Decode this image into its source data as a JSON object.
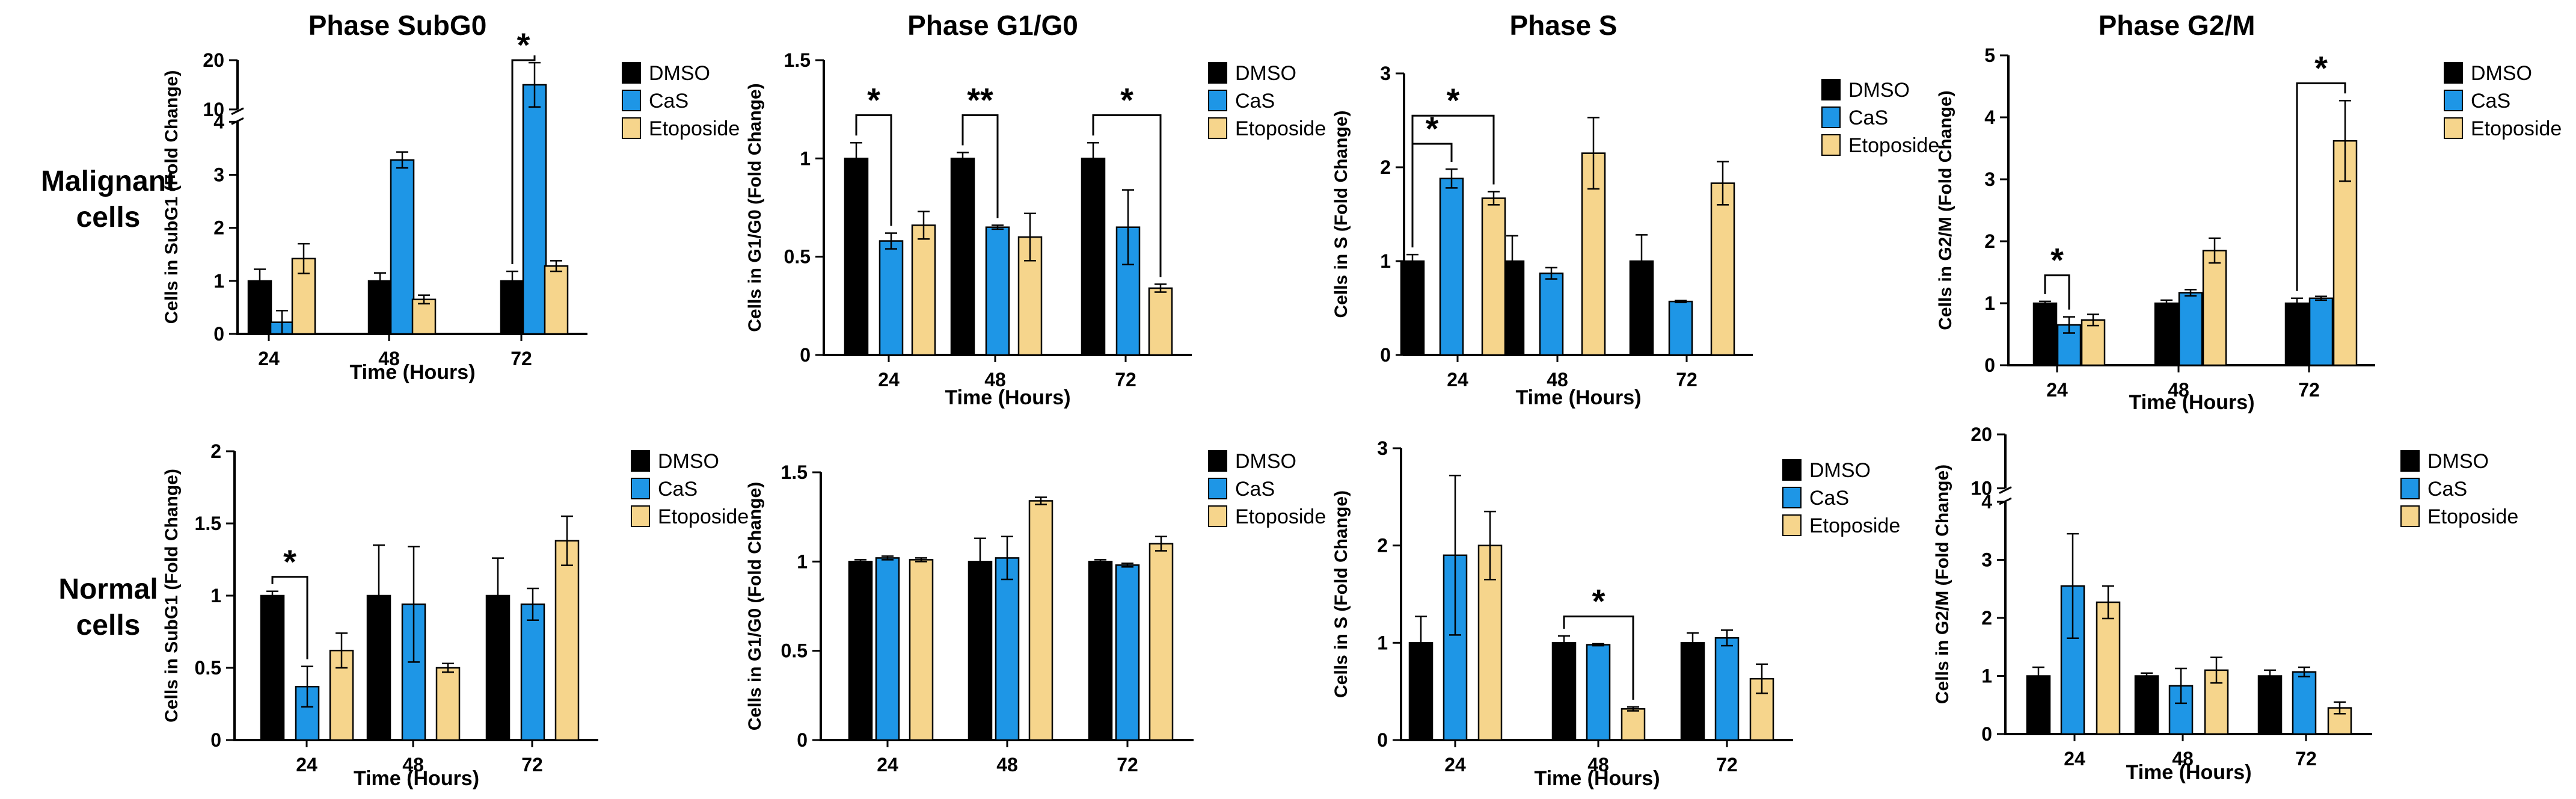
{
  "row_labels": {
    "malignant": "Malignant\ncells",
    "normal": "Normal\ncells"
  },
  "colors": {
    "DMSO": "#000000",
    "CaS": "#1e96e6",
    "Etoposide": "#f6d58c"
  },
  "chart_data": [
    {
      "id": "m_subg0",
      "type": "bar",
      "title": "Phase SubG0",
      "xlabel": "Time (Hours)",
      "ylabel": "Cells in SubG1 (Fold Change)",
      "categories": [
        "24",
        "48",
        "72"
      ],
      "series": [
        {
          "name": "DMSO",
          "values": [
            1.0,
            1.0,
            1.0
          ],
          "err": [
            0.22,
            0.15,
            0.18
          ]
        },
        {
          "name": "CaS",
          "values": [
            0.22,
            3.28,
            15.0
          ],
          "err": [
            0.22,
            0.15,
            4.5
          ]
        },
        {
          "name": "Etoposide",
          "values": [
            1.42,
            0.65,
            1.28
          ],
          "err": [
            0.28,
            0.08,
            0.1
          ]
        }
      ],
      "ylim": [
        0,
        20
      ],
      "yticks": [
        0,
        1,
        2,
        3,
        4,
        10,
        20
      ],
      "axis_break": {
        "lower": [
          0,
          4
        ],
        "upper": [
          10,
          20
        ]
      },
      "legend": [
        "DMSO",
        "CaS",
        "Etoposide"
      ],
      "annotations": [
        {
          "text": "*",
          "from_group": 2,
          "from_series": 0,
          "to_group": 2,
          "to_series": 1,
          "level": 20
        }
      ]
    },
    {
      "id": "m_g1g0",
      "type": "bar",
      "title": "Phase G1/G0",
      "xlabel": "Time (Hours)",
      "ylabel": "Cells in G1/G0 (Fold Change)",
      "categories": [
        "24",
        "48",
        "72"
      ],
      "series": [
        {
          "name": "DMSO",
          "values": [
            1.0,
            1.0,
            1.0
          ],
          "err": [
            0.08,
            0.03,
            0.08
          ]
        },
        {
          "name": "CaS",
          "values": [
            0.58,
            0.65,
            0.65
          ],
          "err": [
            0.04,
            0.01,
            0.19
          ]
        },
        {
          "name": "Etoposide",
          "values": [
            0.66,
            0.6,
            0.34
          ],
          "err": [
            0.07,
            0.12,
            0.02
          ]
        }
      ],
      "ylim": [
        0,
        1.5
      ],
      "yticks": [
        0,
        0.5,
        1.0,
        1.5
      ],
      "legend": [
        "DMSO",
        "CaS",
        "Etoposide"
      ],
      "annotations": [
        {
          "text": "*",
          "from_group": 0,
          "from_series": 0,
          "to_group": 0,
          "to_series": 1,
          "level": 1.22
        },
        {
          "text": "**",
          "from_group": 1,
          "from_series": 0,
          "to_group": 1,
          "to_series": 1,
          "level": 1.22
        },
        {
          "text": "*",
          "from_group": 2,
          "from_series": 0,
          "to_group": 2,
          "to_series": 2,
          "level": 1.22
        }
      ]
    },
    {
      "id": "m_s",
      "type": "bar",
      "title": "Phase S",
      "xlabel": "Time (Hours)",
      "ylabel": "Cells in S (Fold Change)",
      "categories": [
        "24",
        "48",
        "72"
      ],
      "series": [
        {
          "name": "DMSO",
          "values": [
            1.0,
            1.0,
            1.0
          ],
          "err": [
            0.07,
            0.27,
            0.28
          ]
        },
        {
          "name": "CaS",
          "values": [
            1.88,
            0.87,
            0.57
          ],
          "err": [
            0.1,
            0.06,
            0.01
          ]
        },
        {
          "name": "Etoposide",
          "values": [
            1.67,
            2.15,
            1.83
          ],
          "err": [
            0.07,
            0.38,
            0.23
          ]
        }
      ],
      "ylim": [
        0,
        3
      ],
      "yticks": [
        0,
        1,
        2,
        3
      ],
      "legend": [
        "DMSO",
        "CaS",
        "Etoposide"
      ],
      "annotations": [
        {
          "text": "*",
          "from_group": 0,
          "from_series": 0,
          "to_group": 0,
          "to_series": 1,
          "level": 2.25
        },
        {
          "text": "*",
          "from_group": 0,
          "from_series": 0,
          "to_group": 0,
          "to_series": 2,
          "level": 2.55
        }
      ]
    },
    {
      "id": "m_g2m",
      "type": "bar",
      "title": "Phase G2/M",
      "xlabel": "Time (Hours)",
      "ylabel": "Cells in G2/M (Fold Change)",
      "categories": [
        "24",
        "48",
        "72"
      ],
      "series": [
        {
          "name": "DMSO",
          "values": [
            1.0,
            1.0,
            1.0
          ],
          "err": [
            0.03,
            0.05,
            0.08
          ]
        },
        {
          "name": "CaS",
          "values": [
            0.65,
            1.17,
            1.08
          ],
          "err": [
            0.13,
            0.05,
            0.03
          ]
        },
        {
          "name": "Etoposide",
          "values": [
            0.73,
            1.85,
            3.62
          ],
          "err": [
            0.09,
            0.2,
            0.65
          ]
        }
      ],
      "ylim": [
        0,
        5
      ],
      "yticks": [
        0,
        1,
        2,
        3,
        4,
        5
      ],
      "legend": [
        "DMSO",
        "CaS",
        "Etoposide"
      ],
      "annotations": [
        {
          "text": "*",
          "from_group": 0,
          "from_series": 0,
          "to_group": 0,
          "to_series": 1,
          "level": 1.45
        },
        {
          "text": "*",
          "from_group": 2,
          "from_series": 0,
          "to_group": 2,
          "to_series": 2,
          "level": 4.55
        }
      ]
    },
    {
      "id": "n_subg0",
      "type": "bar",
      "title": "",
      "xlabel": "Time (Hours)",
      "ylabel": "Cells in SubG1 (Fold Change)",
      "categories": [
        "24",
        "48",
        "72"
      ],
      "series": [
        {
          "name": "DMSO",
          "values": [
            1.0,
            1.0,
            1.0
          ],
          "err": [
            0.03,
            0.35,
            0.26
          ]
        },
        {
          "name": "CaS",
          "values": [
            0.37,
            0.94,
            0.94
          ],
          "err": [
            0.14,
            0.4,
            0.11
          ]
        },
        {
          "name": "Etoposide",
          "values": [
            0.62,
            0.5,
            1.38
          ],
          "err": [
            0.12,
            0.03,
            0.17
          ]
        }
      ],
      "ylim": [
        0,
        2.0
      ],
      "yticks": [
        0,
        0.5,
        1.0,
        1.5,
        2.0
      ],
      "legend": [
        "DMSO",
        "CaS",
        "Etoposide"
      ],
      "annotations": [
        {
          "text": "*",
          "from_group": 0,
          "from_series": 0,
          "to_group": 0,
          "to_series": 1,
          "level": 1.13
        }
      ]
    },
    {
      "id": "n_g1g0",
      "type": "bar",
      "title": "",
      "xlabel": "",
      "ylabel": "Cells in G1/G0 (Fold Change)",
      "categories": [
        "24",
        "48",
        "72"
      ],
      "series": [
        {
          "name": "DMSO",
          "values": [
            1.0,
            1.0,
            1.0
          ],
          "err": [
            0.01,
            0.13,
            0.01
          ]
        },
        {
          "name": "CaS",
          "values": [
            1.02,
            1.02,
            0.98
          ],
          "err": [
            0.01,
            0.12,
            0.01
          ]
        },
        {
          "name": "Etoposide",
          "values": [
            1.01,
            1.34,
            1.1
          ],
          "err": [
            0.01,
            0.02,
            0.04
          ]
        }
      ],
      "ylim": [
        0,
        1.5
      ],
      "yticks": [
        0,
        0.5,
        1.0,
        1.5
      ],
      "legend": [
        "DMSO",
        "CaS",
        "Etoposide"
      ],
      "annotations": []
    },
    {
      "id": "n_s",
      "type": "bar",
      "title": "",
      "xlabel": "Time (Hours)",
      "ylabel": "Cells in S (Fold Change)",
      "categories": [
        "24",
        "48",
        "72"
      ],
      "series": [
        {
          "name": "DMSO",
          "values": [
            1.0,
            1.0,
            1.0
          ],
          "err": [
            0.27,
            0.07,
            0.1
          ]
        },
        {
          "name": "CaS",
          "values": [
            1.9,
            0.98,
            1.05
          ],
          "err": [
            0.82,
            0.01,
            0.08
          ]
        },
        {
          "name": "Etoposide",
          "values": [
            2.0,
            0.32,
            0.63
          ],
          "err": [
            0.35,
            0.02,
            0.15
          ]
        }
      ],
      "ylim": [
        0,
        3
      ],
      "yticks": [
        0,
        1,
        2,
        3
      ],
      "legend": [
        "DMSO",
        "CaS",
        "Etoposide"
      ],
      "annotations": [
        {
          "text": "*",
          "from_group": 1,
          "from_series": 0,
          "to_group": 1,
          "to_series": 2,
          "level": 1.27
        }
      ]
    },
    {
      "id": "n_g2m",
      "type": "bar",
      "title": "",
      "xlabel": "Time (Hours)",
      "ylabel": "Cells in G2/M (Fold Change)",
      "categories": [
        "24",
        "48",
        "72"
      ],
      "series": [
        {
          "name": "DMSO",
          "values": [
            1.0,
            1.0,
            1.0
          ],
          "err": [
            0.15,
            0.05,
            0.1
          ]
        },
        {
          "name": "CaS",
          "values": [
            2.55,
            0.83,
            1.07
          ],
          "err": [
            0.9,
            0.3,
            0.08
          ]
        },
        {
          "name": "Etoposide",
          "values": [
            2.27,
            1.1,
            0.45
          ],
          "err": [
            0.28,
            0.22,
            0.1
          ]
        }
      ],
      "ylim": [
        0,
        20
      ],
      "yticks": [
        0,
        1,
        2,
        3,
        4,
        10,
        20
      ],
      "axis_break": {
        "lower": [
          0,
          4
        ],
        "upper": [
          10,
          20
        ]
      },
      "legend": [
        "DMSO",
        "CaS",
        "Etoposide"
      ],
      "annotations": []
    }
  ]
}
